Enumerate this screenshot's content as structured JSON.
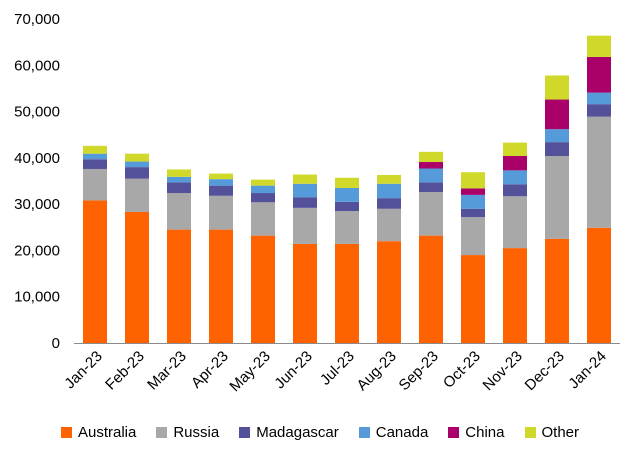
{
  "chart_data": {
    "type": "bar",
    "stacked": true,
    "title": "",
    "xlabel": "",
    "ylabel": "",
    "ylim": [
      0,
      70000
    ],
    "yticks": [
      0,
      10000,
      20000,
      30000,
      40000,
      50000,
      60000,
      70000
    ],
    "ytick_labels": [
      "0",
      "10,000",
      "20,000",
      "30,000",
      "40,000",
      "50,000",
      "60,000",
      "70,000"
    ],
    "grid": false,
    "legend_position": "bottom",
    "categories": [
      "Jan-23",
      "Feb-23",
      "Mar-23",
      "Apr-23",
      "May-23",
      "Jun-23",
      "Jul-23",
      "Aug-23",
      "Sep-23",
      "Oct-23",
      "Nov-23",
      "Dec-23",
      "Jan-24"
    ],
    "series": [
      {
        "name": "Australia",
        "color": "#ff6200",
        "values": [
          30800,
          28300,
          24500,
          24500,
          23200,
          21400,
          21400,
          22000,
          23200,
          19000,
          20500,
          22500,
          24900
        ]
      },
      {
        "name": "Russia",
        "color": "#a8a8a8",
        "values": [
          6800,
          7200,
          7900,
          7300,
          7200,
          7800,
          7100,
          7000,
          9400,
          8200,
          11200,
          17900,
          24000
        ]
      },
      {
        "name": "Madagascar",
        "color": "#525199",
        "values": [
          2100,
          2500,
          2300,
          2200,
          2000,
          2300,
          2000,
          2300,
          2100,
          1800,
          2600,
          3000,
          2700
        ]
      },
      {
        "name": "Canada",
        "color": "#559bd9",
        "values": [
          1200,
          1200,
          1200,
          1400,
          1600,
          2900,
          3000,
          3100,
          3000,
          3000,
          3000,
          2800,
          2500
        ]
      },
      {
        "name": "China",
        "color": "#aa0069",
        "values": [
          0,
          0,
          0,
          0,
          0,
          0,
          0,
          0,
          1400,
          1400,
          3100,
          6400,
          7700
        ]
      },
      {
        "name": "Other",
        "color": "#d0d92a",
        "values": [
          1700,
          1700,
          1600,
          1200,
          1300,
          2000,
          2200,
          1900,
          2200,
          3500,
          2900,
          5200,
          4600
        ]
      }
    ]
  }
}
